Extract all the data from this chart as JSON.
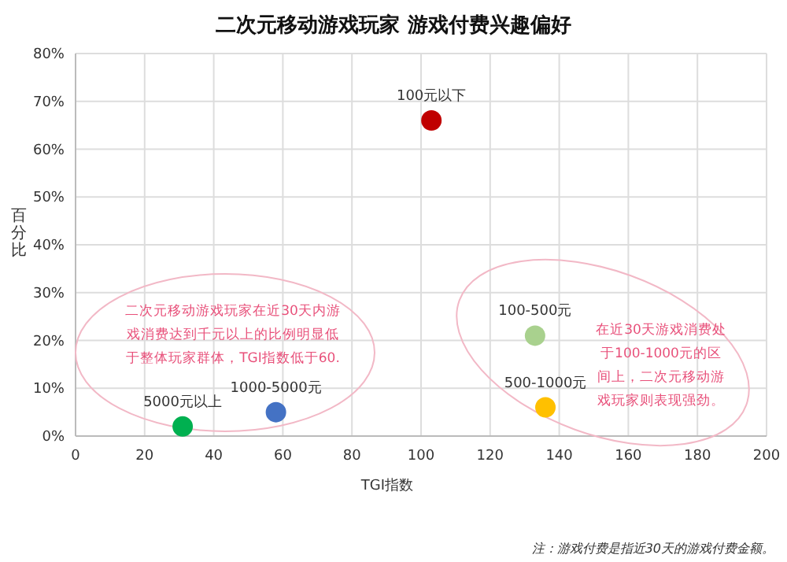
{
  "chart_data": {
    "type": "scatter",
    "title": "二次元移动游戏玩家  游戏付费兴趣偏好",
    "xlabel": "TGI指数",
    "ylabel": "百分比",
    "xlim": [
      0,
      200
    ],
    "xticks": [
      0,
      20,
      40,
      60,
      80,
      100,
      120,
      140,
      160,
      180,
      200
    ],
    "ylim": [
      0,
      80
    ],
    "yticks": [
      {
        "value": 0,
        "label": "0%"
      },
      {
        "value": 10,
        "label": "10%"
      },
      {
        "value": 20,
        "label": "20%"
      },
      {
        "value": 30,
        "label": "30%"
      },
      {
        "value": 40,
        "label": "40%"
      },
      {
        "value": 50,
        "label": "50%"
      },
      {
        "value": 60,
        "label": "60%"
      },
      {
        "value": 70,
        "label": "70%"
      },
      {
        "value": 80,
        "label": "80%"
      }
    ],
    "grid": true,
    "marker": "circle",
    "series": [
      {
        "name": "100元以下",
        "color": "#c00000",
        "x": [
          103
        ],
        "values": [
          66
        ]
      },
      {
        "name": "100-500元",
        "color": "#a9d18e",
        "x": [
          133
        ],
        "values": [
          21
        ]
      },
      {
        "name": "500-1000元",
        "color": "#ffc000",
        "x": [
          136
        ],
        "values": [
          6
        ]
      },
      {
        "name": "1000-5000元",
        "color": "#4472c4",
        "x": [
          58
        ],
        "values": [
          5
        ]
      },
      {
        "name": "5000元以上",
        "color": "#00b050",
        "x": [
          31
        ],
        "values": [
          2
        ]
      }
    ],
    "annotations": [
      "二次元移动游戏玩家在近30天内游戏消费达到千元以上的比例明显低于整体玩家群体，TGI指数低于60.",
      "在近30天游戏消费处于100-1000元的区间上，二次元移动游戏玩家则表现强劲。",
      "注：游戏付费是指近30天的游戏付费金额。"
    ]
  }
}
